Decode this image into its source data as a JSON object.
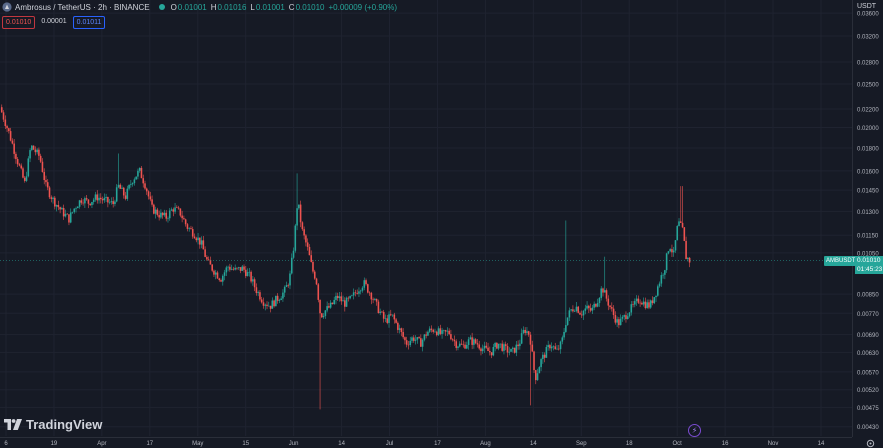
{
  "header": {
    "symbol": "Ambrosus / TetherUS · 2h · BINANCE",
    "o_label": "O",
    "o_value": "0.01001",
    "h_label": "H",
    "h_value": "0.01016",
    "l_label": "L",
    "l_value": "0.01001",
    "c_label": "C",
    "c_value": "0.01010",
    "change": "+0.00009 (+0.90%)"
  },
  "pills": {
    "sell": "0.01010",
    "spread": "0.00001",
    "buy": "0.01011"
  },
  "currency": "USDT",
  "price_tag": {
    "ticker": "AMBUSDT",
    "price": "0.01010",
    "countdown": "01:45:23"
  },
  "brand": {
    "name": "TradingView"
  },
  "icons": {
    "logo": "ambrosus-logo-icon",
    "status": "market-open-dot-icon",
    "brand": "tradingview-logo-icon",
    "alert": "lightning-icon",
    "settings": "gear-icon"
  },
  "colors": {
    "up": "#26a69a",
    "down": "#ef5350",
    "background": "#161a25"
  },
  "chart_data": {
    "type": "candlestick",
    "scale": "log",
    "y_ticks": [
      "0.03600",
      "0.03200",
      "0.02800",
      "0.02500",
      "0.02200",
      "0.02000",
      "0.01800",
      "0.01600",
      "0.01450",
      "0.01300",
      "0.01150",
      "0.01050",
      "0.00850",
      "0.00770",
      "0.00690",
      "0.00630",
      "0.00570",
      "0.00520",
      "0.00475",
      "0.00430"
    ],
    "x_ticks": [
      "6",
      "19",
      "Apr",
      "17",
      "May",
      "15",
      "Jun",
      "14",
      "Jul",
      "17",
      "Aug",
      "14",
      "Sep",
      "18",
      "Oct",
      "16",
      "Nov",
      "14"
    ],
    "ylim": [
      0.0041,
      0.0385
    ],
    "close_path": [
      {
        "t": 0,
        "p": 0.0222
      },
      {
        "t": 0.01,
        "p": 0.0195
      },
      {
        "t": 0.02,
        "p": 0.0168
      },
      {
        "t": 0.028,
        "p": 0.015
      },
      {
        "t": 0.035,
        "p": 0.0182
      },
      {
        "t": 0.045,
        "p": 0.0172
      },
      {
        "t": 0.052,
        "p": 0.0148
      },
      {
        "t": 0.06,
        "p": 0.0138
      },
      {
        "t": 0.07,
        "p": 0.013
      },
      {
        "t": 0.078,
        "p": 0.0125
      },
      {
        "t": 0.085,
        "p": 0.0133
      },
      {
        "t": 0.093,
        "p": 0.0139
      },
      {
        "t": 0.1,
        "p": 0.0136
      },
      {
        "t": 0.11,
        "p": 0.014
      },
      {
        "t": 0.12,
        "p": 0.0137
      },
      {
        "t": 0.128,
        "p": 0.0135
      },
      {
        "t": 0.134,
        "p": 0.0148
      },
      {
        "t": 0.142,
        "p": 0.014
      },
      {
        "t": 0.15,
        "p": 0.0153
      },
      {
        "t": 0.158,
        "p": 0.016
      },
      {
        "t": 0.165,
        "p": 0.0148
      },
      {
        "t": 0.172,
        "p": 0.0132
      },
      {
        "t": 0.18,
        "p": 0.0128
      },
      {
        "t": 0.188,
        "p": 0.0126
      },
      {
        "t": 0.196,
        "p": 0.0132
      },
      {
        "t": 0.204,
        "p": 0.0129
      },
      {
        "t": 0.212,
        "p": 0.012
      },
      {
        "t": 0.22,
        "p": 0.0116
      },
      {
        "t": 0.228,
        "p": 0.011
      },
      {
        "t": 0.235,
        "p": 0.01
      },
      {
        "t": 0.242,
        "p": 0.0096
      },
      {
        "t": 0.25,
        "p": 0.0092
      },
      {
        "t": 0.258,
        "p": 0.0098
      },
      {
        "t": 0.266,
        "p": 0.0096
      },
      {
        "t": 0.275,
        "p": 0.0097
      },
      {
        "t": 0.283,
        "p": 0.0093
      },
      {
        "t": 0.29,
        "p": 0.0087
      },
      {
        "t": 0.298,
        "p": 0.0082
      },
      {
        "t": 0.306,
        "p": 0.008
      },
      {
        "t": 0.314,
        "p": 0.0083
      },
      {
        "t": 0.322,
        "p": 0.0086
      },
      {
        "t": 0.328,
        "p": 0.0092
      },
      {
        "t": 0.333,
        "p": 0.011
      },
      {
        "t": 0.337,
        "p": 0.0138
      },
      {
        "t": 0.342,
        "p": 0.0118
      },
      {
        "t": 0.348,
        "p": 0.0108
      },
      {
        "t": 0.354,
        "p": 0.0096
      },
      {
        "t": 0.358,
        "p": 0.0092
      },
      {
        "t": 0.363,
        "p": 0.0076
      },
      {
        "t": 0.368,
        "p": 0.0078
      },
      {
        "t": 0.375,
        "p": 0.008
      },
      {
        "t": 0.382,
        "p": 0.0084
      },
      {
        "t": 0.39,
        "p": 0.0081
      },
      {
        "t": 0.398,
        "p": 0.0083
      },
      {
        "t": 0.405,
        "p": 0.0087
      },
      {
        "t": 0.412,
        "p": 0.009
      },
      {
        "t": 0.42,
        "p": 0.0085
      },
      {
        "t": 0.428,
        "p": 0.0079
      },
      {
        "t": 0.436,
        "p": 0.0074
      },
      {
        "t": 0.444,
        "p": 0.0076
      },
      {
        "t": 0.452,
        "p": 0.0071
      },
      {
        "t": 0.46,
        "p": 0.0066
      },
      {
        "t": 0.468,
        "p": 0.0068
      },
      {
        "t": 0.476,
        "p": 0.0066
      },
      {
        "t": 0.484,
        "p": 0.007
      },
      {
        "t": 0.492,
        "p": 0.0071
      },
      {
        "t": 0.5,
        "p": 0.0069
      },
      {
        "t": 0.508,
        "p": 0.007
      },
      {
        "t": 0.516,
        "p": 0.0066
      },
      {
        "t": 0.524,
        "p": 0.0065
      },
      {
        "t": 0.532,
        "p": 0.0067
      },
      {
        "t": 0.54,
        "p": 0.0066
      },
      {
        "t": 0.548,
        "p": 0.0064
      },
      {
        "t": 0.556,
        "p": 0.0063
      },
      {
        "t": 0.564,
        "p": 0.0066
      },
      {
        "t": 0.572,
        "p": 0.0064
      },
      {
        "t": 0.58,
        "p": 0.0063
      },
      {
        "t": 0.588,
        "p": 0.0066
      },
      {
        "t": 0.594,
        "p": 0.0071
      },
      {
        "t": 0.6,
        "p": 0.0069
      },
      {
        "t": 0.606,
        "p": 0.0055
      },
      {
        "t": 0.612,
        "p": 0.006
      },
      {
        "t": 0.618,
        "p": 0.0063
      },
      {
        "t": 0.624,
        "p": 0.0066
      },
      {
        "t": 0.63,
        "p": 0.0063
      },
      {
        "t": 0.636,
        "p": 0.0066
      },
      {
        "t": 0.641,
        "p": 0.0074
      },
      {
        "t": 0.646,
        "p": 0.0078
      },
      {
        "t": 0.652,
        "p": 0.008
      },
      {
        "t": 0.658,
        "p": 0.0077
      },
      {
        "t": 0.664,
        "p": 0.0079
      },
      {
        "t": 0.67,
        "p": 0.0078
      },
      {
        "t": 0.676,
        "p": 0.0082
      },
      {
        "t": 0.682,
        "p": 0.0088
      },
      {
        "t": 0.688,
        "p": 0.0082
      },
      {
        "t": 0.694,
        "p": 0.0077
      },
      {
        "t": 0.7,
        "p": 0.0073
      },
      {
        "t": 0.706,
        "p": 0.0075
      },
      {
        "t": 0.712,
        "p": 0.0078
      },
      {
        "t": 0.718,
        "p": 0.008
      },
      {
        "t": 0.724,
        "p": 0.0083
      },
      {
        "t": 0.73,
        "p": 0.0081
      },
      {
        "t": 0.736,
        "p": 0.008
      },
      {
        "t": 0.742,
        "p": 0.0085
      },
      {
        "t": 0.748,
        "p": 0.0092
      },
      {
        "t": 0.753,
        "p": 0.0098
      },
      {
        "t": 0.758,
        "p": 0.011
      },
      {
        "t": 0.763,
        "p": 0.0104
      },
      {
        "t": 0.768,
        "p": 0.0123
      },
      {
        "t": 0.773,
        "p": 0.0118
      },
      {
        "t": 0.777,
        "p": 0.0103
      },
      {
        "t": 0.781,
        "p": 0.0101
      }
    ],
    "spikes": [
      {
        "t": 0.135,
        "hi": 0.0175
      },
      {
        "t": 0.337,
        "hi": 0.0158
      },
      {
        "t": 0.363,
        "lo": 0.0047
      },
      {
        "t": 0.6,
        "lo": 0.0048
      },
      {
        "t": 0.64,
        "hi": 0.0124
      },
      {
        "t": 0.685,
        "hi": 0.0103
      },
      {
        "t": 0.772,
        "hi": 0.0148
      }
    ]
  }
}
